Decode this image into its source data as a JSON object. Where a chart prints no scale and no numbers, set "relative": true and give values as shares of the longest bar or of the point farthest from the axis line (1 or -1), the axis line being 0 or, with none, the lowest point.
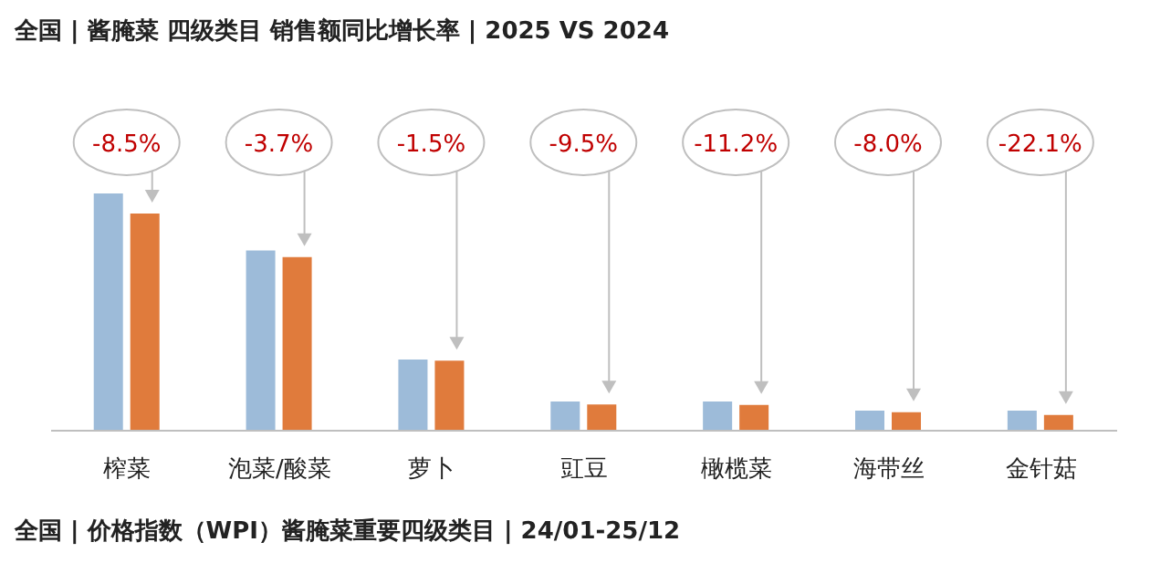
{
  "chart_data": {
    "type": "bar",
    "title": "全国 | 酱腌菜 四级类目 销售额同比增长率 | 2025 VS 2024",
    "relative": true,
    "categories": [
      "榨菜",
      "泡菜/酸菜",
      "萝卜",
      "豇豆",
      "橄榄菜",
      "海带丝",
      "金针菇"
    ],
    "series": [
      {
        "color": "#9dbbd9",
        "values": [
          1,
          0.76,
          0.3,
          0.123,
          0.123,
          0.085,
          0.085
        ]
      },
      {
        "color": "#e07b3c",
        "values": [
          0.915,
          0.732,
          0.295,
          0.111,
          0.109,
          0.078,
          0.066
        ]
      }
    ],
    "annotations": [
      "-8.5%",
      "-3.7%",
      "-1.5%",
      "-9.5%",
      "-11.2%",
      "-8.0%",
      "-22.1%",
      "全国 | 价格指数（WPI）酱腌菜重要四级类目 | 24/01-25/12"
    ],
    "grid": false,
    "legend": false
  }
}
